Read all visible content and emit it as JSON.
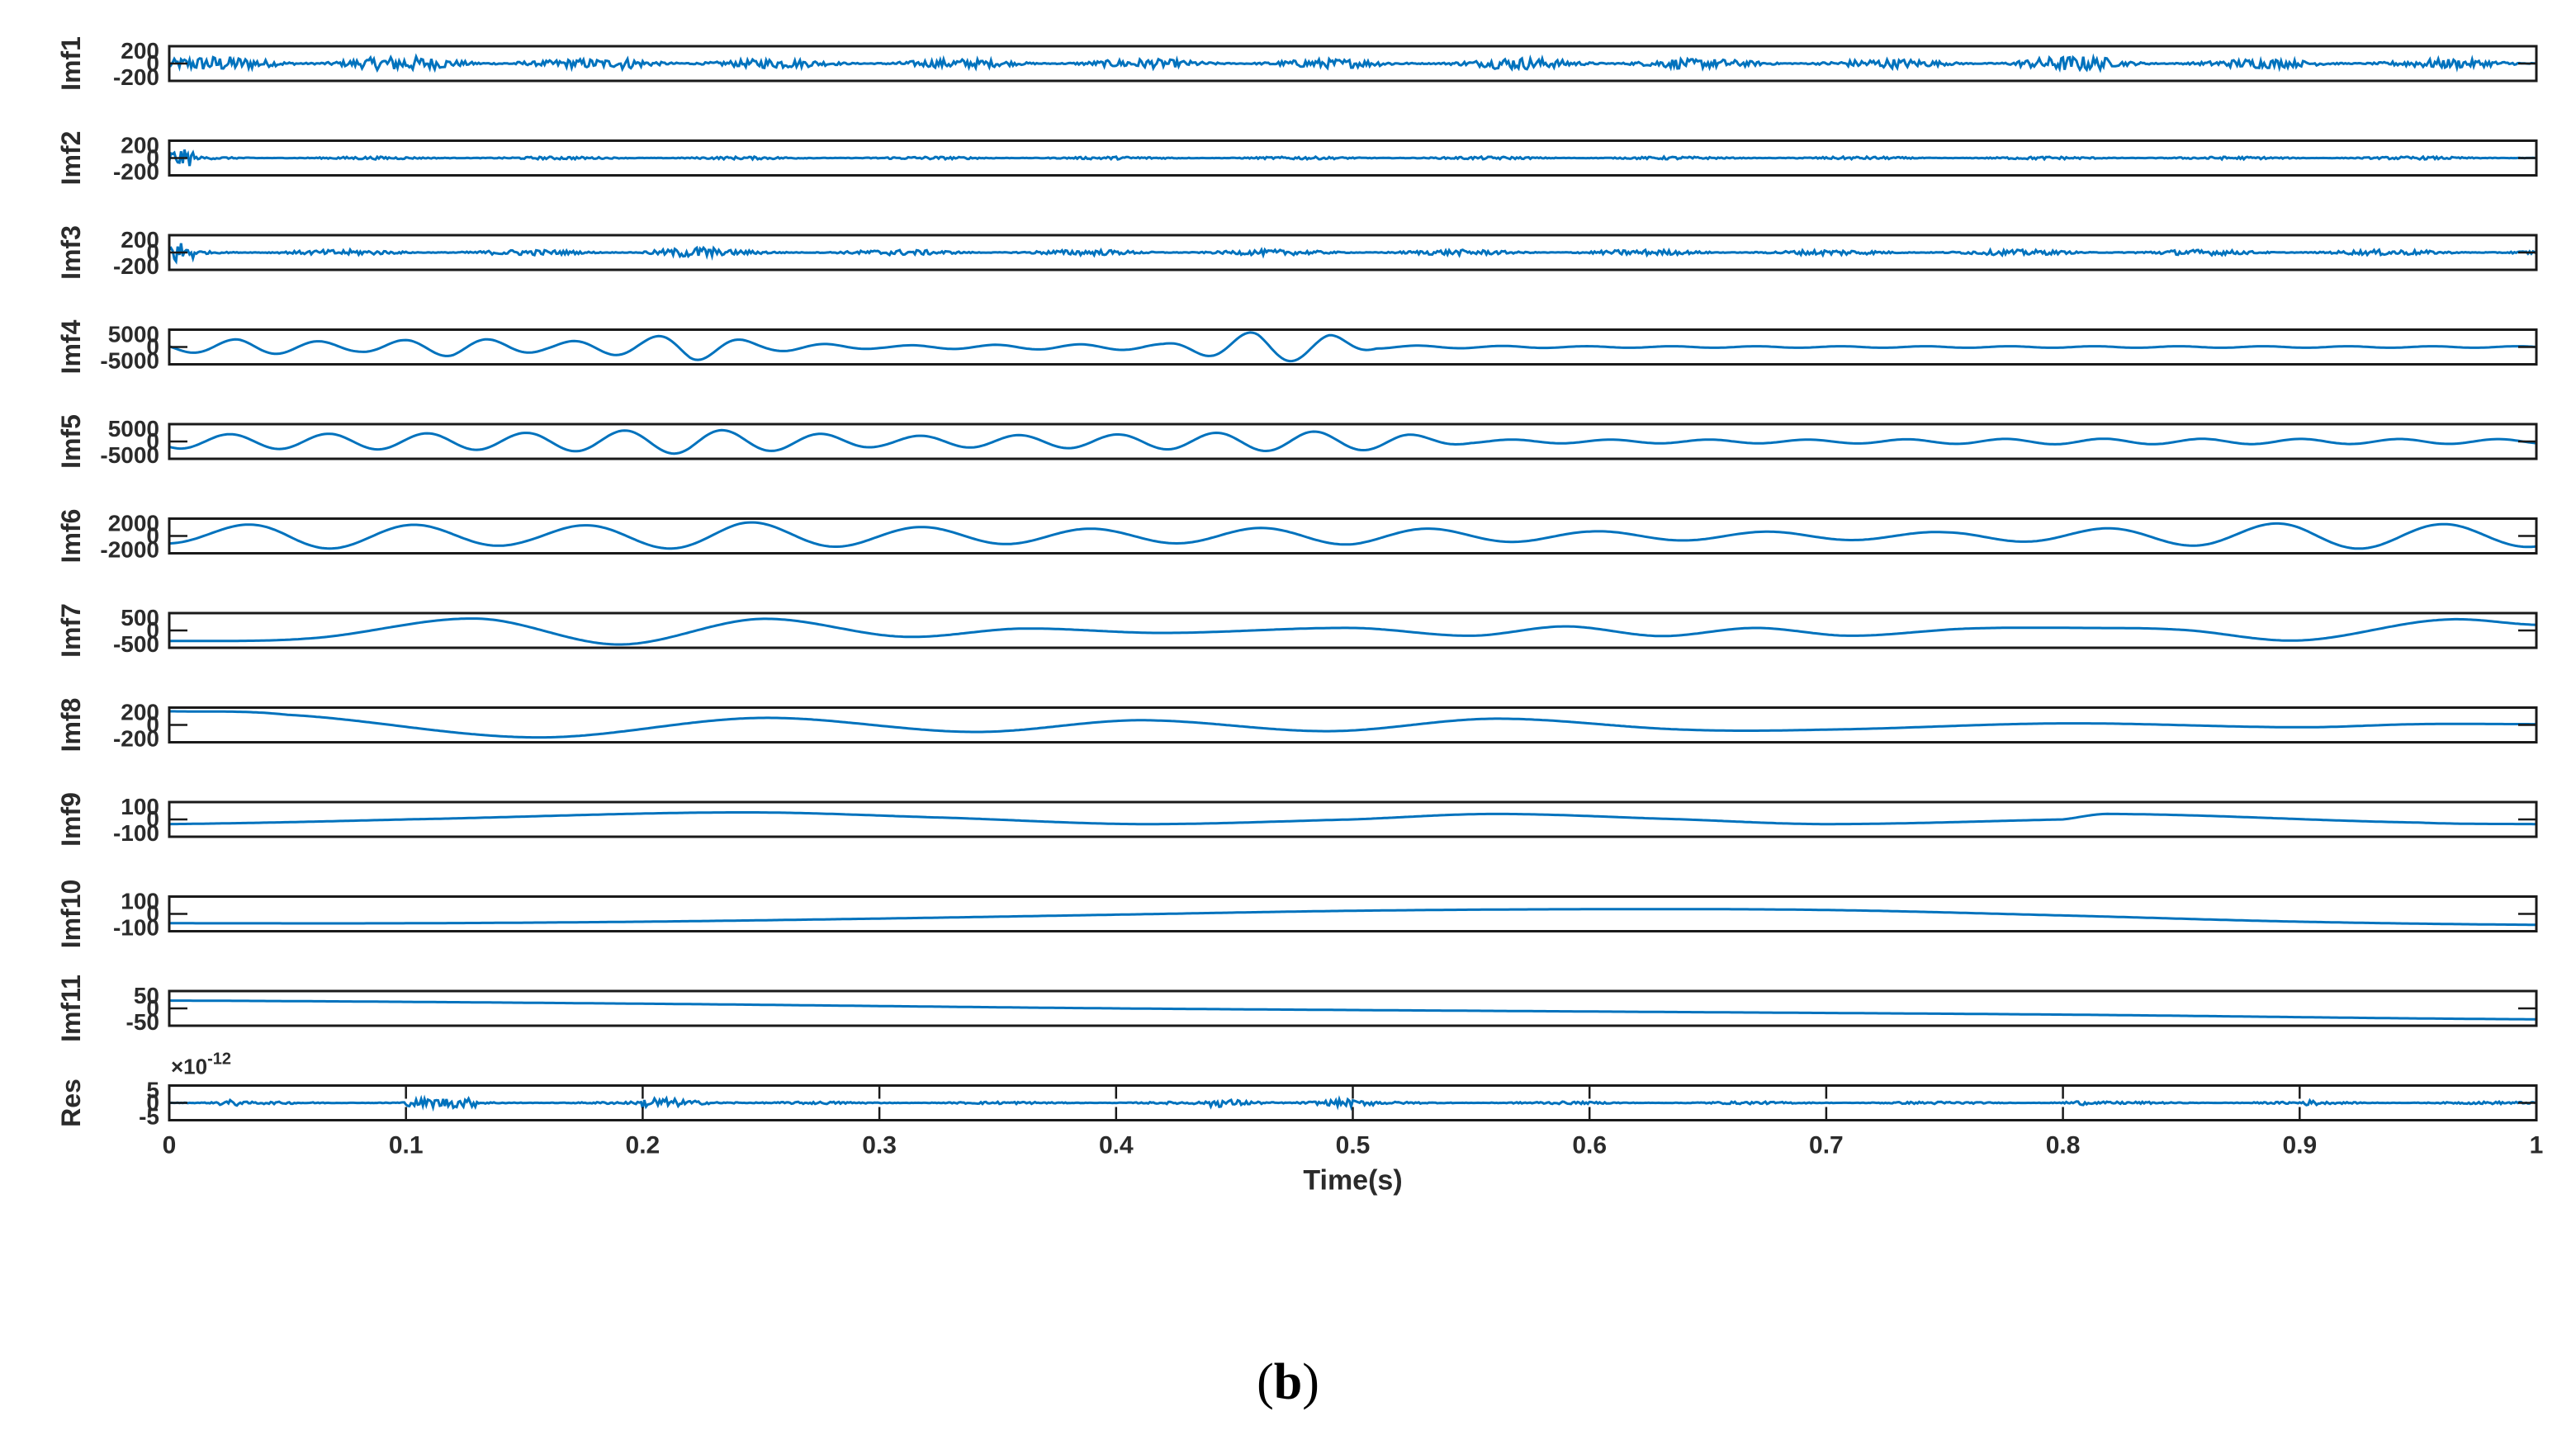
{
  "caption": {
    "open": "(",
    "letter": "b",
    "close": ")"
  },
  "chart_data": {
    "type": "line",
    "xlabel": "Time(s)",
    "xlim": [
      0,
      1
    ],
    "xticks": [
      "0",
      "0.1",
      "0.2",
      "0.3",
      "0.4",
      "0.5",
      "0.6",
      "0.7",
      "0.8",
      "0.9",
      "1"
    ],
    "line_color": "#0072BD",
    "grid": false,
    "panels": [
      {
        "name": "Imf1",
        "ylim": [
          -200,
          200
        ],
        "ytick_labels": [
          "200",
          "0",
          "-200"
        ],
        "shape": "noise",
        "amplitude": 60,
        "bursts": [
          [
            0.0,
            0.15,
            1.6
          ],
          [
            0.19,
            0.22,
            1.8
          ],
          [
            0.56,
            0.64,
            1.3
          ],
          [
            0.78,
            0.82,
            1.6
          ]
        ],
        "approx_points": []
      },
      {
        "name": "Imf2",
        "ylim": [
          -200,
          200
        ],
        "ytick_labels": [
          "200",
          "0",
          "-200"
        ],
        "shape": "noise",
        "amplitude": 18,
        "bursts": [
          [
            0.0,
            0.01,
            6.0
          ]
        ],
        "approx_points": []
      },
      {
        "name": "Imf3",
        "ylim": [
          -200,
          200
        ],
        "ytick_labels": [
          "200",
          "0",
          "-200"
        ],
        "shape": "noise",
        "amplitude": 35,
        "bursts": [
          [
            0.0,
            0.01,
            5.0
          ],
          [
            0.2,
            0.23,
            2.2
          ]
        ],
        "approx_points": []
      },
      {
        "name": "Imf4",
        "ylim": [
          -5000,
          5000
        ],
        "ytick_labels": [
          "5000",
          "0",
          "-5000"
        ],
        "shape": "oscillation",
        "frequency": 28,
        "envelope": [
          [
            0,
            0.3
          ],
          [
            0.03,
            0.5
          ],
          [
            0.08,
            0.3
          ],
          [
            0.12,
            0.6
          ],
          [
            0.16,
            0.3
          ],
          [
            0.2,
            0.6
          ],
          [
            0.22,
            0.9
          ],
          [
            0.25,
            0.3
          ],
          [
            0.3,
            0.1
          ],
          [
            0.42,
            0.2
          ],
          [
            0.46,
            1.0
          ],
          [
            0.49,
            0.8
          ],
          [
            0.51,
            0.1
          ],
          [
            0.6,
            0.05
          ],
          [
            1.0,
            0.05
          ]
        ],
        "approx_points": []
      },
      {
        "name": "Imf5",
        "ylim": [
          -5000,
          5000
        ],
        "ytick_labels": [
          "5000",
          "0",
          "-5000"
        ],
        "shape": "oscillation",
        "frequency": 24,
        "envelope": [
          [
            0,
            0.45
          ],
          [
            0.15,
            0.55
          ],
          [
            0.22,
            0.8
          ],
          [
            0.3,
            0.35
          ],
          [
            0.4,
            0.45
          ],
          [
            0.48,
            0.65
          ],
          [
            0.52,
            0.5
          ],
          [
            0.55,
            0.12
          ],
          [
            0.7,
            0.12
          ],
          [
            0.8,
            0.18
          ],
          [
            1.0,
            0.15
          ]
        ],
        "approx_points": []
      },
      {
        "name": "Imf6",
        "ylim": [
          -2000,
          2000
        ],
        "ytick_labels": [
          "2000",
          "0",
          "-2000"
        ],
        "shape": "oscillation",
        "frequency": 14,
        "envelope": [
          [
            0,
            0.5
          ],
          [
            0.05,
            0.85
          ],
          [
            0.15,
            0.6
          ],
          [
            0.24,
            0.9
          ],
          [
            0.3,
            0.6
          ],
          [
            0.4,
            0.45
          ],
          [
            0.5,
            0.55
          ],
          [
            0.6,
            0.3
          ],
          [
            0.75,
            0.25
          ],
          [
            0.85,
            0.6
          ],
          [
            0.9,
            0.85
          ],
          [
            1.0,
            0.7
          ]
        ],
        "approx_points": []
      },
      {
        "name": "Imf7",
        "ylim": [
          -500,
          500
        ],
        "ytick_labels": [
          "500",
          "0",
          "-500"
        ],
        "shape": "points",
        "approx_points": [
          [
            0,
            -340
          ],
          [
            0.06,
            -250
          ],
          [
            0.13,
            380
          ],
          [
            0.19,
            -450
          ],
          [
            0.25,
            370
          ],
          [
            0.31,
            -200
          ],
          [
            0.36,
            60
          ],
          [
            0.42,
            -80
          ],
          [
            0.5,
            80
          ],
          [
            0.55,
            -170
          ],
          [
            0.59,
            130
          ],
          [
            0.63,
            -180
          ],
          [
            0.67,
            80
          ],
          [
            0.71,
            -170
          ],
          [
            0.76,
            60
          ],
          [
            0.81,
            80
          ],
          [
            0.85,
            20
          ],
          [
            0.9,
            -320
          ],
          [
            0.96,
            340
          ],
          [
            1.0,
            180
          ]
        ]
      },
      {
        "name": "Imf8",
        "ylim": [
          -200,
          200
        ],
        "ytick_labels": [
          "200",
          "0",
          "-200"
        ],
        "shape": "points",
        "approx_points": [
          [
            0,
            175
          ],
          [
            0.05,
            130
          ],
          [
            0.155,
            -160
          ],
          [
            0.25,
            90
          ],
          [
            0.34,
            -90
          ],
          [
            0.41,
            60
          ],
          [
            0.49,
            -80
          ],
          [
            0.56,
            80
          ],
          [
            0.64,
            -60
          ],
          [
            0.7,
            -60
          ],
          [
            0.8,
            20
          ],
          [
            0.9,
            -30
          ],
          [
            0.95,
            10
          ],
          [
            1.0,
            10
          ]
        ]
      },
      {
        "name": "Imf9",
        "ylim": [
          -100,
          100
        ],
        "ytick_labels": [
          "100",
          "0",
          "-100"
        ],
        "shape": "points",
        "approx_points": [
          [
            0,
            -30
          ],
          [
            0.1,
            0
          ],
          [
            0.24,
            45
          ],
          [
            0.33,
            10
          ],
          [
            0.41,
            -30
          ],
          [
            0.5,
            0
          ],
          [
            0.56,
            35
          ],
          [
            0.64,
            0
          ],
          [
            0.7,
            -30
          ],
          [
            0.8,
            0
          ],
          [
            0.82,
            35
          ],
          [
            0.95,
            -20
          ],
          [
            1.0,
            -30
          ]
        ]
      },
      {
        "name": "Imf10",
        "ylim": [
          -100,
          100
        ],
        "ytick_labels": [
          "100",
          "0",
          "-100"
        ],
        "shape": "points",
        "approx_points": [
          [
            0,
            -60
          ],
          [
            0.1,
            -60
          ],
          [
            0.2,
            -50
          ],
          [
            0.3,
            -30
          ],
          [
            0.4,
            -5
          ],
          [
            0.5,
            20
          ],
          [
            0.6,
            30
          ],
          [
            0.7,
            25
          ],
          [
            0.8,
            -10
          ],
          [
            0.9,
            -50
          ],
          [
            1.0,
            -70
          ]
        ]
      },
      {
        "name": "Imf11",
        "ylim": [
          -50,
          50
        ],
        "ytick_labels": [
          "50",
          "0",
          "-50"
        ],
        "shape": "points",
        "approx_points": [
          [
            0,
            25
          ],
          [
            0.2,
            15
          ],
          [
            0.4,
            0
          ],
          [
            0.6,
            -10
          ],
          [
            0.8,
            -20
          ],
          [
            1.0,
            -35
          ]
        ]
      },
      {
        "name": "Res",
        "ylim": [
          -5,
          5
        ],
        "ytick_labels": [
          "5",
          "0",
          "-5"
        ],
        "exponent_label": "×10",
        "exponent_power": "-12",
        "shape": "noise",
        "amplitude": 0.4,
        "bursts": [
          [
            0.02,
            0.03,
            3.0
          ],
          [
            0.1,
            0.13,
            4.0
          ],
          [
            0.2,
            0.24,
            5.0
          ],
          [
            0.44,
            0.5,
            4.0
          ],
          [
            0.5,
            0.51,
            2.0
          ],
          [
            0.8,
            0.81,
            2.5
          ],
          [
            0.9,
            0.91,
            2.0
          ]
        ],
        "approx_points": []
      }
    ]
  }
}
